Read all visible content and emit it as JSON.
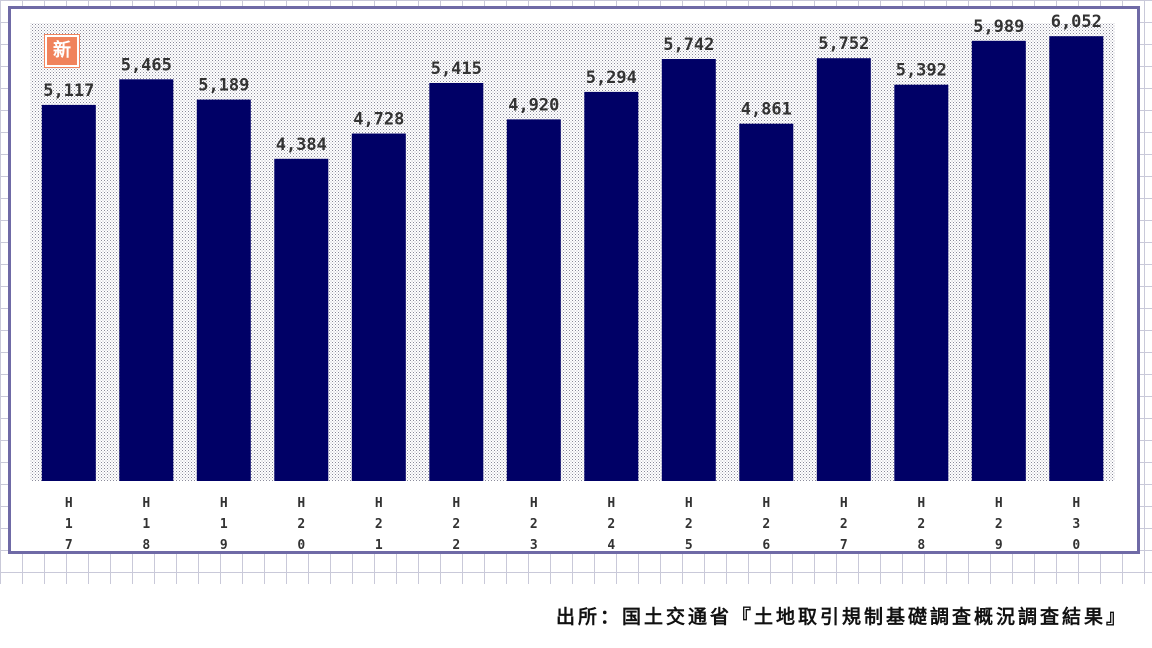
{
  "badge": {
    "label": "新"
  },
  "source_note": "出所：国土交通省『土地取引規制基礎調査概況調査結果』",
  "colors": {
    "bar": "#000066",
    "frame": "#6f6aa6",
    "plot_pattern": "#8a8a9a"
  },
  "chart_data": {
    "type": "bar",
    "title": "",
    "xlabel": "",
    "ylabel": "",
    "grid": false,
    "legend": "none",
    "categories": [
      "H17",
      "H18",
      "H19",
      "H20",
      "H21",
      "H22",
      "H23",
      "H24",
      "H25",
      "H26",
      "H27",
      "H28",
      "H29",
      "H30"
    ],
    "tick_labels": [
      [
        "H",
        "1",
        "7"
      ],
      [
        "H",
        "1",
        "8"
      ],
      [
        "H",
        "1",
        "9"
      ],
      [
        "H",
        "2",
        "0"
      ],
      [
        "H",
        "2",
        "1"
      ],
      [
        "H",
        "2",
        "2"
      ],
      [
        "H",
        "2",
        "3"
      ],
      [
        "H",
        "2",
        "4"
      ],
      [
        "H",
        "2",
        "5"
      ],
      [
        "H",
        "2",
        "6"
      ],
      [
        "H",
        "2",
        "7"
      ],
      [
        "H",
        "2",
        "8"
      ],
      [
        "H",
        "2",
        "9"
      ],
      [
        "H",
        "3",
        "0"
      ]
    ],
    "values": [
      5117,
      5465,
      5189,
      4384,
      4728,
      5415,
      4920,
      5294,
      5742,
      4861,
      5752,
      5392,
      5989,
      6052
    ],
    "data_labels": [
      "5,117",
      "5,465",
      "5,189",
      "4,384",
      "4,728",
      "5,415",
      "4,920",
      "5,294",
      "5,742",
      "4,861",
      "5,752",
      "5,392",
      "5,989",
      "6,052"
    ],
    "ylim": [
      0,
      6500
    ]
  }
}
